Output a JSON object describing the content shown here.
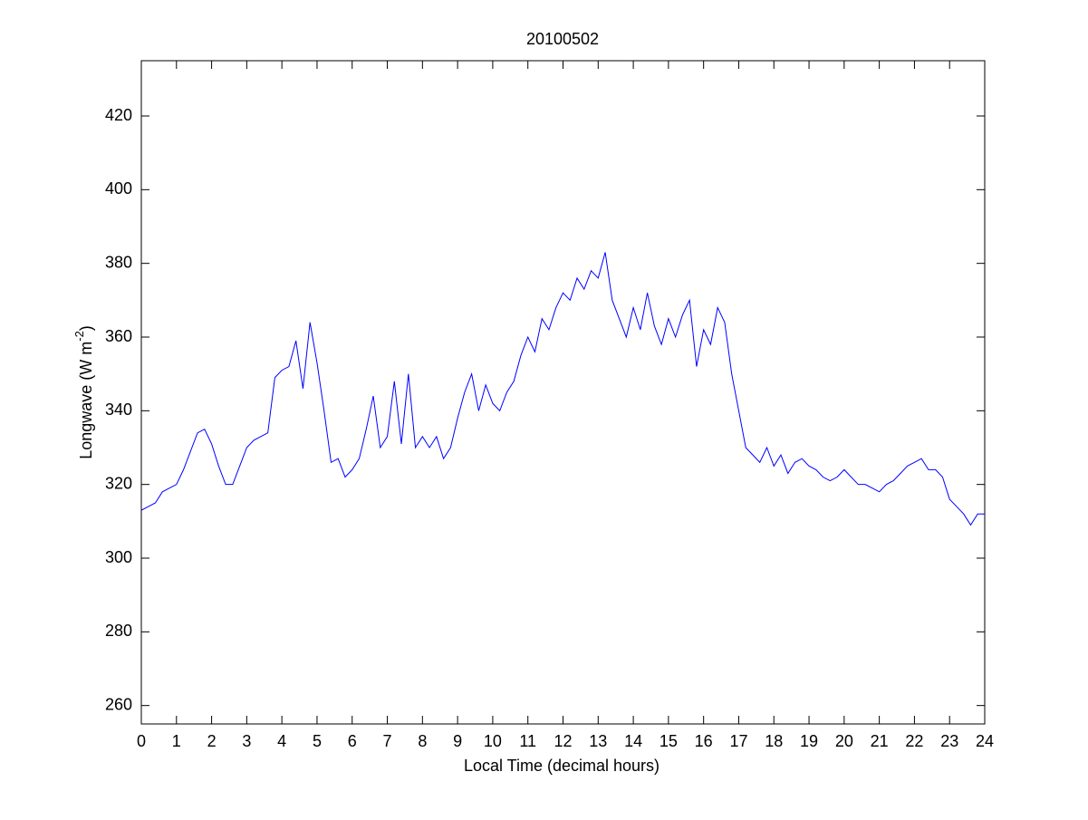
{
  "chart_data": {
    "type": "line",
    "title": "20100502",
    "x_label": "Local Time (decimal hours)",
    "y_label": [
      "Longwave (W m",
      "-2",
      ")"
    ],
    "x": [
      0,
      0.2,
      0.4,
      0.6,
      0.8,
      1,
      1.2,
      1.4,
      1.6,
      1.8,
      2,
      2.2,
      2.4,
      2.6,
      2.8,
      3,
      3.2,
      3.4,
      3.6,
      3.8,
      4,
      4.2,
      4.4,
      4.6,
      4.8,
      5,
      5.2,
      5.4,
      5.6,
      5.8,
      6,
      6.2,
      6.4,
      6.6,
      6.8,
      7,
      7.2,
      7.4,
      7.6,
      7.8,
      8,
      8.2,
      8.4,
      8.6,
      8.8,
      9,
      9.2,
      9.4,
      9.6,
      9.8,
      10,
      10.2,
      10.4,
      10.6,
      10.8,
      11,
      11.2,
      11.4,
      11.6,
      11.8,
      12,
      12.2,
      12.4,
      12.6,
      12.8,
      13,
      13.2,
      13.4,
      13.6,
      13.8,
      14,
      14.2,
      14.4,
      14.6,
      14.8,
      15,
      15.2,
      15.4,
      15.6,
      15.8,
      16,
      16.2,
      16.4,
      16.6,
      16.8,
      17,
      17.2,
      17.4,
      17.6,
      17.8,
      18,
      18.2,
      18.4,
      18.6,
      18.8,
      19,
      19.2,
      19.4,
      19.6,
      19.8,
      20,
      20.2,
      20.4,
      20.6,
      20.8,
      21,
      21.2,
      21.4,
      21.6,
      21.8,
      22,
      22.2,
      22.4,
      22.6,
      22.8,
      23,
      23.2,
      23.4,
      23.6,
      23.8,
      24
    ],
    "series": [
      {
        "color": "#0000ff",
        "values": [
          313,
          314,
          315,
          318,
          319,
          320,
          324,
          329,
          334,
          335,
          331,
          325,
          320,
          320,
          325,
          330,
          332,
          333,
          334,
          349,
          351,
          352,
          359,
          346,
          364,
          353,
          340,
          326,
          327,
          322,
          324,
          327,
          335,
          344,
          330,
          333,
          348,
          331,
          350,
          330,
          333,
          330,
          333,
          327,
          330,
          338,
          345,
          350,
          340,
          347,
          342,
          340,
          345,
          348,
          355,
          360,
          356,
          365,
          362,
          368,
          372,
          370,
          376,
          373,
          378,
          376,
          383,
          370,
          365,
          360,
          368,
          362,
          372,
          363,
          358,
          365,
          360,
          366,
          370,
          352,
          362,
          358,
          368,
          364,
          350,
          340,
          330,
          328,
          326,
          330,
          325,
          328,
          323,
          326,
          327,
          325,
          324,
          322,
          321,
          322,
          324,
          322,
          320,
          320,
          319,
          318,
          320,
          321,
          323,
          325,
          326,
          327,
          324,
          324,
          322,
          316,
          314,
          312,
          309,
          312,
          312
        ]
      }
    ],
    "xlim": [
      0,
      24
    ],
    "ylim": [
      255,
      435
    ],
    "xticks": [
      0,
      1,
      2,
      3,
      4,
      5,
      6,
      7,
      8,
      9,
      10,
      11,
      12,
      13,
      14,
      15,
      16,
      17,
      18,
      19,
      20,
      21,
      22,
      23,
      24
    ],
    "yticks": [
      260,
      280,
      300,
      320,
      340,
      360,
      380,
      400,
      420
    ]
  }
}
